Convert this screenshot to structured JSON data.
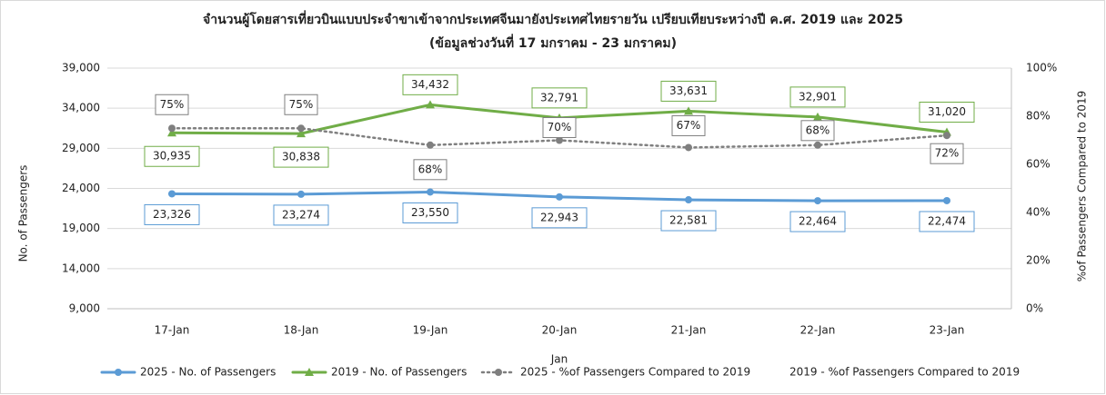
{
  "chart_data": {
    "type": "line",
    "title": "จำนวนผู้โดยสารเที่ยวบินแบบประจำขาเข้าจากประเทศจีนมายังประเทศไทยรายวัน เปรียบเทียบระหว่างปี ค.ศ. 2019 และ 2025",
    "subtitle": "(ข้อมูลช่วงวันที่ 17 มกราคม - 23 มกราคม)",
    "x_label": "Jan",
    "y_label": "No. of Passengers",
    "y2_label": "%of Passengers Compared to 2019",
    "categories": [
      "17-Jan",
      "18-Jan",
      "19-Jan",
      "20-Jan",
      "21-Jan",
      "22-Jan",
      "23-Jan"
    ],
    "series": [
      {
        "name": "2025 - No. of Passengers",
        "color": "#5b9bd5",
        "marker": "circle",
        "dash": "solid",
        "values": [
          23326,
          23274,
          23550,
          22943,
          22581,
          22464,
          22474
        ],
        "value_labels": [
          "23,326",
          "23,274",
          "23,550",
          "22,943",
          "22,581",
          "22,464",
          "22,474"
        ]
      },
      {
        "name": "2019 - No. of Passengers",
        "color": "#70ad47",
        "marker": "triangle",
        "dash": "solid",
        "values": [
          30935,
          30838,
          34432,
          32791,
          33631,
          32901,
          31020
        ],
        "value_labels": [
          "30,935",
          "30,838",
          "34,432",
          "32,791",
          "33,631",
          "32,901",
          "31,020"
        ]
      },
      {
        "name": "2025 - %of Passengers Compared to 2019",
        "color": "#7f7f7f",
        "marker": "circle",
        "dash": "dotted",
        "axis": "y2",
        "values": [
          75,
          75,
          68,
          70,
          67,
          68,
          72
        ],
        "value_labels": [
          "75%",
          "75%",
          "68%",
          "70%",
          "67%",
          "68%",
          "72%"
        ]
      },
      {
        "name": "2019 - %of Passengers Compared to 2019",
        "axis": "y2",
        "values": [
          null,
          null,
          null,
          null,
          null,
          null,
          null
        ]
      }
    ],
    "ylim": [
      9000,
      39000
    ],
    "yticks": [
      {
        "value": 9000,
        "label": "9,000"
      },
      {
        "value": 14000,
        "label": "14,000"
      },
      {
        "value": 19000,
        "label": "19,000"
      },
      {
        "value": 24000,
        "label": "24,000"
      },
      {
        "value": 29000,
        "label": "29,000"
      },
      {
        "value": 34000,
        "label": "34,000"
      },
      {
        "value": 39000,
        "label": "39,000"
      }
    ],
    "y2lim": [
      0,
      100
    ],
    "y2ticks": [
      {
        "value": 0,
        "label": "0%"
      },
      {
        "value": 20,
        "label": "20%"
      },
      {
        "value": 40,
        "label": "40%"
      },
      {
        "value": 60,
        "label": "60%"
      },
      {
        "value": 80,
        "label": "80%"
      },
      {
        "value": 100,
        "label": "100%"
      }
    ],
    "grid": true,
    "legend": "bottom"
  }
}
